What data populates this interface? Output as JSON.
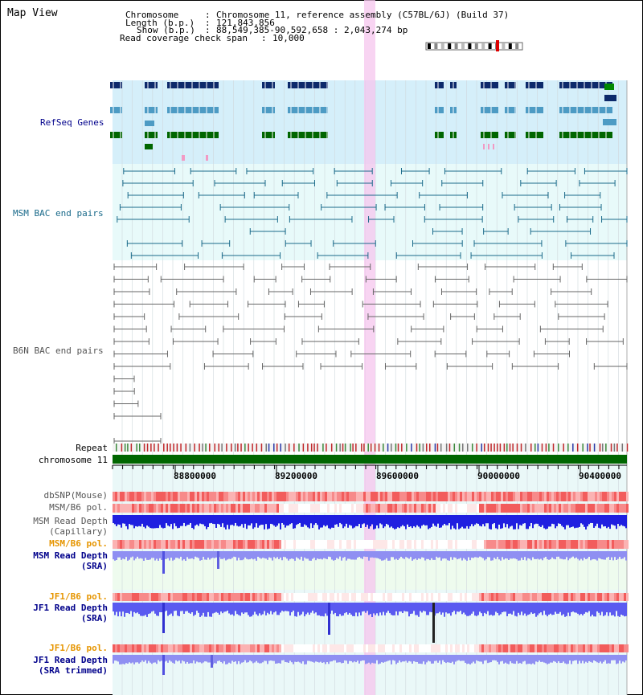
{
  "view_title": "Map View",
  "header": {
    "chromosome_label": "Chromosome",
    "chromosome_value": "Chromosome 11, reference assembly (C57BL/6J) (Build 37)",
    "length_label": "Length (b.p.)",
    "length_value": "121,843,856",
    "show_label": "Show (b.p.)",
    "show_value": "88,549,385-90,592,658 : 2,043,274 bp",
    "coverage_label": "Read coverage check span",
    "coverage_value": "10,000"
  },
  "tracks": {
    "refseq": "RefSeq Genes",
    "msm_bac": "MSM BAC end pairs",
    "b6n_bac": "B6N BAC end pairs",
    "repeat": "Repeat",
    "chromosome": "chromosome 11",
    "dbsnp": "dbSNP(Mouse)",
    "msm_b6_pol_1": "MSM/B6 pol.",
    "msm_depth_cap_1": "MSM Read Depth",
    "msm_depth_cap_2": "(Capillary)",
    "msm_b6_pol_2": "MSM/B6 pol.",
    "msm_depth_sra_1": "MSM Read Depth",
    "msm_depth_sra_2": "(SRA)",
    "jf1_b6_pol_1": "JF1/B6 pol.",
    "jf1_depth_sra_1": "JF1 Read Depth",
    "jf1_depth_sra_2": "(SRA)",
    "jf1_b6_pol_2": "JF1/B6 pol.",
    "jf1_depth_trim_1": "JF1 Read Depth",
    "jf1_depth_trim_2": "(SRA trimmed)"
  },
  "ruler": {
    "ticks": [
      "88800000",
      "89200000",
      "89600000",
      "90000000",
      "90400000"
    ]
  },
  "colors": {
    "refseq_bg": "#d5effa",
    "bac_bg": "#e8fafa",
    "gene_dark": "#0d2a6b",
    "gene_mid": "#4d9bc4",
    "gene_green": "#006600",
    "chrom_green": "#006600",
    "highlight": "#f5c6ee",
    "label_blue": "#00008b",
    "label_teal": "#1a6a8a",
    "label_orange": "#e69500"
  }
}
